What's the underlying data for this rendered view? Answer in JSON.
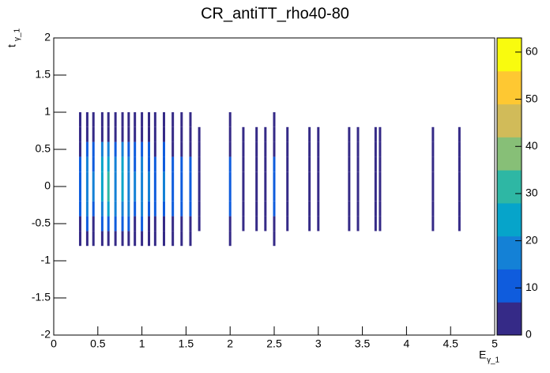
{
  "chart_data": {
    "type": "heatmap",
    "title": "CR_antiTT_rho40-80",
    "x_label": "E",
    "x_label_sub": "γ_1",
    "y_label": "t",
    "y_label_sub": "γ_1",
    "xlim": [
      0,
      5
    ],
    "xticks": [
      0,
      0.5,
      1,
      1.5,
      2,
      2.5,
      3,
      3.5,
      4,
      4.5,
      5
    ],
    "ylim": [
      -2,
      2
    ],
    "yticks": [
      -2,
      -1.5,
      -1,
      -0.5,
      0,
      0.5,
      1,
      1.5,
      2
    ],
    "zlim": [
      0,
      63
    ],
    "zticks": [
      0,
      10,
      20,
      30,
      40,
      50,
      60
    ],
    "palette": [
      "#352a87",
      "#0f5cdd",
      "#1481d6",
      "#06a4ca",
      "#2eb7a4",
      "#87bf77",
      "#d1bb59",
      "#fec832",
      "#f9fb0e"
    ],
    "x": [
      0.3,
      0.38,
      0.45,
      0.55,
      0.62,
      0.7,
      0.78,
      0.85,
      0.92,
      1.0,
      1.08,
      1.15,
      1.25,
      1.35,
      1.45,
      1.55,
      1.65,
      2.0,
      2.15,
      2.3,
      2.4,
      2.5,
      2.65,
      2.9,
      3.0,
      3.35,
      3.45,
      3.65,
      3.7,
      4.3,
      4.6
    ],
    "y_bins": [
      -0.8,
      -0.6,
      -0.4,
      -0.2,
      0,
      0.2,
      0.4,
      0.6,
      0.8,
      1.0
    ],
    "values": [
      [
        1,
        4,
        8,
        10,
        10,
        9,
        6,
        2,
        1
      ],
      [
        2,
        8,
        16,
        20,
        20,
        18,
        12,
        4,
        2
      ],
      [
        1,
        6,
        12,
        15,
        15,
        13,
        9,
        3,
        1
      ],
      [
        2,
        10,
        20,
        25,
        25,
        22,
        15,
        5,
        2
      ],
      [
        3,
        12,
        24,
        30,
        30,
        27,
        18,
        6,
        3
      ],
      [
        2,
        8,
        16,
        20,
        20,
        18,
        12,
        4,
        2
      ],
      [
        2,
        10,
        20,
        25,
        25,
        22,
        15,
        5,
        2
      ],
      [
        2,
        8,
        16,
        20,
        20,
        18,
        12,
        4,
        2
      ],
      [
        1,
        6,
        12,
        15,
        15,
        13,
        9,
        3,
        1
      ],
      [
        2,
        8,
        16,
        20,
        20,
        18,
        12,
        4,
        2
      ],
      [
        1,
        6,
        12,
        15,
        15,
        13,
        9,
        3,
        1
      ],
      [
        1,
        4,
        8,
        10,
        10,
        9,
        6,
        2,
        1
      ],
      [
        1,
        6,
        12,
        15,
        15,
        13,
        9,
        3,
        1
      ],
      [
        1,
        4,
        8,
        10,
        10,
        9,
        6,
        2,
        1
      ],
      [
        1,
        4,
        8,
        10,
        10,
        9,
        6,
        2,
        1
      ],
      [
        1,
        4,
        8,
        10,
        10,
        9,
        6,
        2,
        1
      ],
      [
        0,
        2,
        4,
        5,
        5,
        4,
        3,
        1,
        0
      ],
      [
        1,
        4,
        8,
        10,
        10,
        9,
        6,
        2,
        1
      ],
      [
        0,
        2,
        4,
        5,
        5,
        4,
        3,
        1,
        0
      ],
      [
        0,
        2,
        4,
        5,
        5,
        4,
        3,
        1,
        0
      ],
      [
        0,
        2,
        4,
        5,
        5,
        4,
        3,
        1,
        0
      ],
      [
        1,
        4,
        8,
        10,
        10,
        9,
        6,
        2,
        1
      ],
      [
        0,
        2,
        4,
        5,
        5,
        4,
        3,
        1,
        0
      ],
      [
        0,
        2,
        4,
        5,
        5,
        4,
        3,
        1,
        0
      ],
      [
        0,
        2,
        4,
        5,
        5,
        4,
        3,
        1,
        0
      ],
      [
        0,
        2,
        4,
        5,
        5,
        4,
        3,
        1,
        0
      ],
      [
        0,
        2,
        4,
        5,
        5,
        4,
        3,
        1,
        0
      ],
      [
        0,
        1,
        2,
        3,
        3,
        3,
        2,
        1,
        0
      ],
      [
        0,
        1,
        2,
        3,
        3,
        3,
        2,
        1,
        0
      ],
      [
        0,
        1,
        2,
        3,
        3,
        3,
        2,
        1,
        0
      ],
      [
        0,
        1,
        2,
        3,
        3,
        3,
        2,
        1,
        0
      ]
    ]
  }
}
